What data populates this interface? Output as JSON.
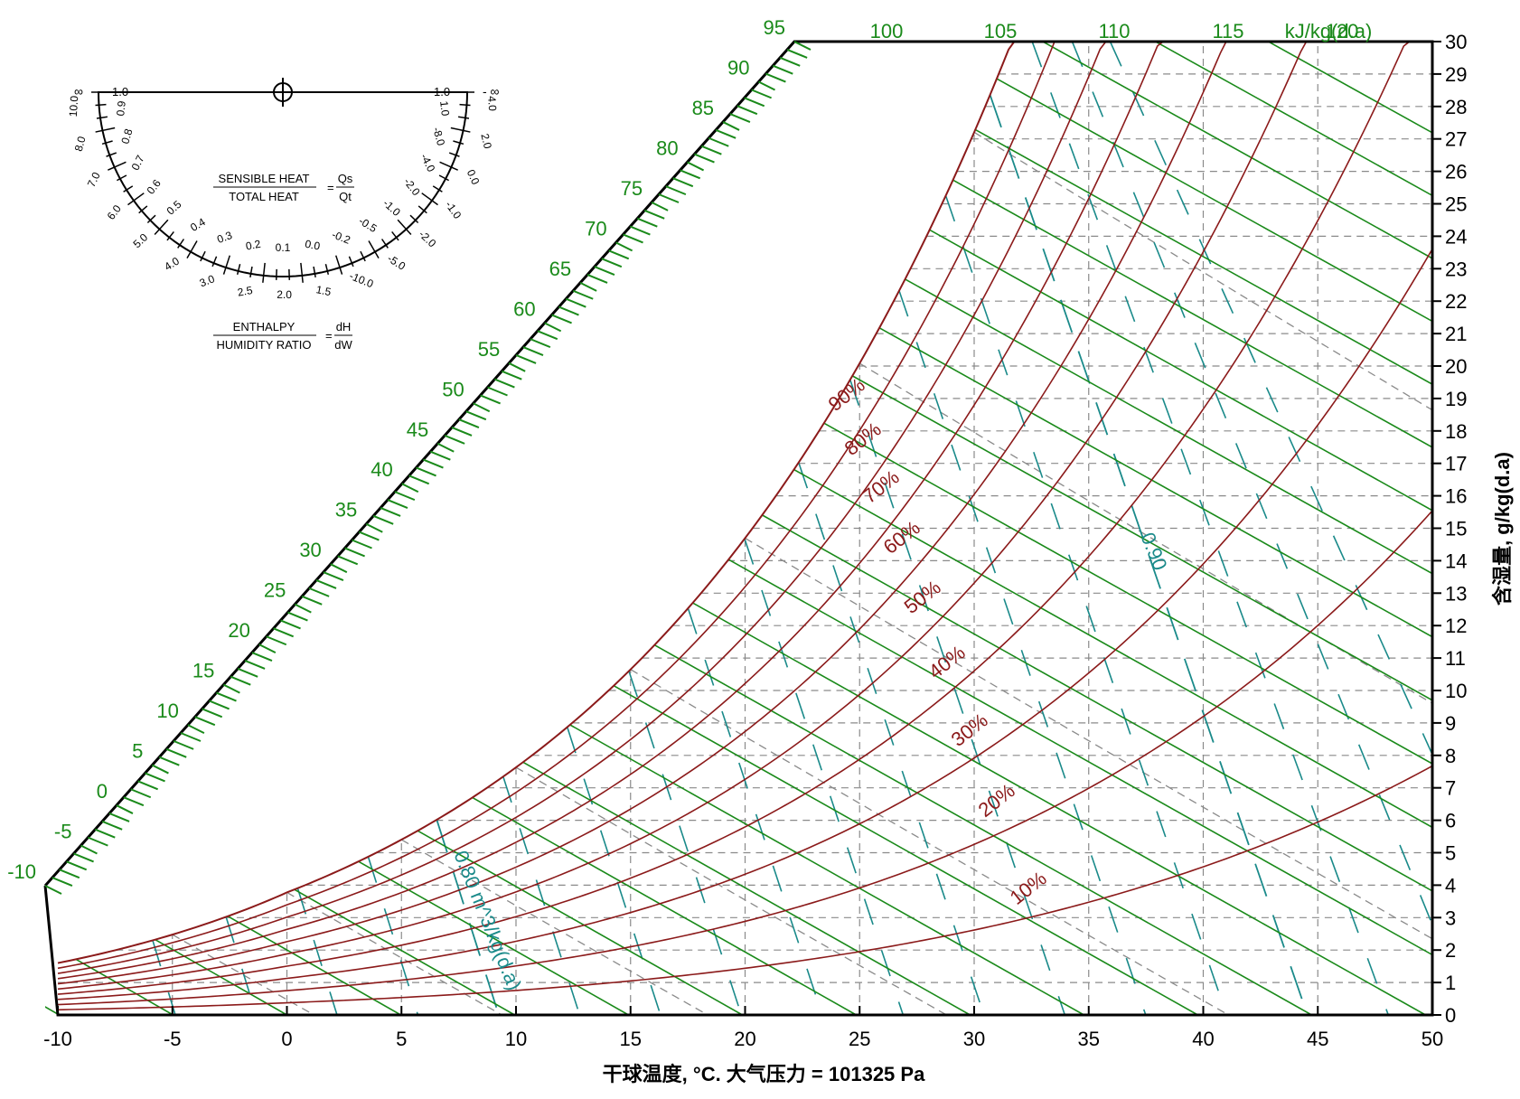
{
  "chart_data": {
    "type": "psychrometric",
    "title": "",
    "pressure_pa": 101325,
    "xlabel": "干球温度, °C. 大气压力 = 101325 Pa",
    "ylabel": "含湿量, g/kg(d.a)",
    "xlim": [
      -10,
      50
    ],
    "ylim": [
      0,
      30
    ],
    "x_ticks": [
      "-10",
      "-5",
      "0",
      "5",
      "10",
      "15",
      "20",
      "25",
      "30",
      "35",
      "40",
      "45",
      "50"
    ],
    "y_ticks": [
      "0",
      "1",
      "2",
      "3",
      "4",
      "5",
      "6",
      "7",
      "8",
      "9",
      "10",
      "11",
      "12",
      "13",
      "14",
      "15",
      "16",
      "17",
      "18",
      "19",
      "20",
      "21",
      "22",
      "23",
      "24",
      "25",
      "26",
      "27",
      "28",
      "29",
      "30"
    ],
    "enthalpy_unit": "kJ/kg(d.a)",
    "enthalpy_values": [
      -10,
      -5,
      0,
      5,
      10,
      15,
      20,
      25,
      30,
      35,
      40,
      45,
      50,
      55,
      60,
      65,
      70,
      75,
      80,
      85,
      90,
      95,
      100,
      105,
      110,
      115,
      120
    ],
    "enthalpy_labels": [
      "-10",
      "-5",
      "0",
      "5",
      "10",
      "15",
      "20",
      "25",
      "30",
      "35",
      "40",
      "45",
      "50",
      "55",
      "60",
      "65",
      "70",
      "75",
      "80",
      "85",
      "90",
      "95",
      "100",
      "105",
      "110",
      "115",
      "120"
    ],
    "relative_humidity": [
      {
        "rh": 10,
        "label": "10%"
      },
      {
        "rh": 20,
        "label": "20%"
      },
      {
        "rh": 30,
        "label": "30%"
      },
      {
        "rh": 40,
        "label": "40%"
      },
      {
        "rh": 50,
        "label": "50%"
      },
      {
        "rh": 60,
        "label": "60%"
      },
      {
        "rh": 70,
        "label": "70%"
      },
      {
        "rh": 80,
        "label": "80%"
      },
      {
        "rh": 90,
        "label": "90%"
      },
      {
        "rh": 100,
        "label": ""
      }
    ],
    "specific_volume": [
      {
        "v": 0.8,
        "label": "0.80 m^3/kg(d.a)"
      },
      {
        "v": 0.9,
        "label": "0.90"
      }
    ],
    "wet_bulb_dashed_lines": true,
    "grid": true,
    "colors": {
      "enthalpy": "#1a8a1a",
      "relative_humidity": "#8b1a1a",
      "volume": "#1a8a8a",
      "grid": "#8a8a8a",
      "axis": "#000000"
    }
  },
  "protractor": {
    "sensible_label": "SENSIBLE HEAT",
    "total_label": "TOTAL HEAT",
    "qs": "Qs",
    "qt": "Qt",
    "enthalpy_label": "ENTHALPY",
    "humidity_label": "HUMIDITY RATIO",
    "dh": "dH",
    "dw": "dW",
    "equals": "=",
    "infinity": "∞",
    "minus_infinity": "- ∞",
    "left_top": "1.0",
    "right_top": "1.0",
    "inner_labels": [
      "0.9",
      "0.8",
      "0.7",
      "0.6",
      "0.5",
      "0.4",
      "0.3",
      "0.2",
      "0.1",
      "0.0",
      "-0.2",
      "-0.5",
      "-1.0",
      "-2.0",
      "-4.0",
      "-8.0",
      "1.0"
    ],
    "outer_labels": [
      "10.0",
      "8.0",
      "7.0",
      "6.0",
      "5.0",
      "4.0",
      "3.0",
      "2.5",
      "2.0",
      "1.5",
      "-10.0",
      "-5.0",
      "-2.0",
      "-1.0",
      "0.0",
      "2.0",
      "4.0"
    ]
  }
}
